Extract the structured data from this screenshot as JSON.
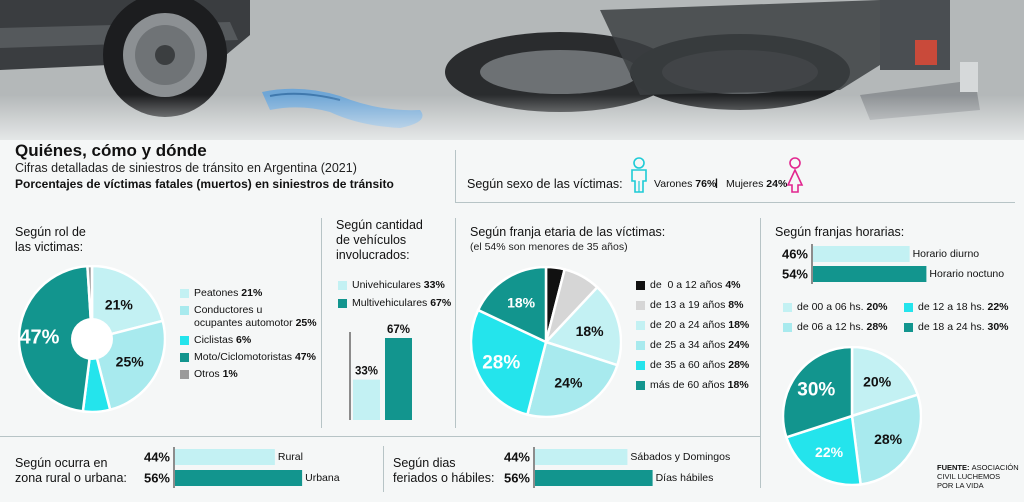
{
  "header": {
    "title": "Quiénes, cómo y dónde",
    "subtitle": "Cifras detalladas de siniestros de tránsito en Argentina (2021)",
    "subtitle2": "Porcentajes de víctimas fatales (muertos) en siniestros de tránsito"
  },
  "colors": {
    "dark": "#12958e",
    "light": "#c3f1f3",
    "mid": "#6fdde2",
    "bright": "#24e4ec",
    "black": "#111111",
    "grey": "#c9c9c9",
    "pink": "#e2268f"
  },
  "sexo": {
    "title": "Según sexo de las víctimas:",
    "varones_label": "Varones",
    "varones_value": "76%",
    "separator": "|",
    "mujeres_label": "Mujeres",
    "mujeres_value": "24%",
    "varones_icon": "male-person-icon",
    "mujeres_icon": "female-person-icon"
  },
  "rol": {
    "title1": "Según rol de",
    "title2": "las victimas:",
    "legend": [
      {
        "label": "Peatones",
        "value": "21%"
      },
      {
        "label": "Conductores u",
        "label2": "ocupantes automotor",
        "value": "25%"
      },
      {
        "label": "Ciclistas",
        "value": "6%"
      },
      {
        "label": "Moto/Ciclomotoristas",
        "value": "47%"
      },
      {
        "label": "Otros",
        "value": "1%"
      }
    ]
  },
  "vehiculos": {
    "title1": "Según cantidad",
    "title2": "de vehículos",
    "title3": "involucrados:",
    "legend": [
      {
        "label": "Univehiculares",
        "value": "33%"
      },
      {
        "label": "Multivehiculares",
        "value": "67%"
      }
    ]
  },
  "edad": {
    "title": "Según franja etaria de las víctimas:",
    "note": "(el 54% son menores de 35 años)",
    "legend": [
      {
        "label": "de  0 a 12 años",
        "value": "4%"
      },
      {
        "label": "de 13 a 19 años",
        "value": "8%"
      },
      {
        "label": "de 20 a 24 años",
        "value": "18%"
      },
      {
        "label": "de 25 a 34 años",
        "value": "24%"
      },
      {
        "label": "de 35 a 60 años",
        "value": "28%"
      },
      {
        "label": "más de 60 años",
        "value": "18%"
      }
    ]
  },
  "horarias": {
    "title": "Según franjas horarias:",
    "legend": [
      {
        "label": "de 00 a 06 hs.",
        "value": "20%"
      },
      {
        "label": "de 12 a 18 hs.",
        "value": "22%"
      },
      {
        "label": "de 06 a 12 hs.",
        "value": "28%"
      },
      {
        "label": "de 18 a 24 hs.",
        "value": "30%"
      }
    ]
  },
  "zona": {
    "title1": "Según ocurra en",
    "title2": "zona rural o urbana:"
  },
  "dias": {
    "title1": "Según dias",
    "title2": "feriados o hábiles:"
  },
  "fuente": {
    "label": "FUENTE:",
    "text1": "ASOCIACIÓN",
    "text2": "CIVIL LUCHEMOS",
    "text3": "POR LA VIDA"
  },
  "chart_data": [
    {
      "type": "pie",
      "name": "rol",
      "labels": [
        "Peatones",
        "Conductores u ocupantes automotor",
        "Ciclistas",
        "Moto/Ciclomotoristas",
        "Otros"
      ],
      "values": [
        21,
        25,
        6,
        47,
        1
      ],
      "display": [
        "21%",
        "25%",
        "",
        "47%",
        ""
      ]
    },
    {
      "type": "bar",
      "name": "vehiculos",
      "categories": [
        "Univehiculares",
        "Multivehiculares"
      ],
      "values": [
        33,
        67
      ],
      "display": [
        "33%",
        "67%"
      ],
      "ylim": [
        0,
        67
      ]
    },
    {
      "type": "pie",
      "name": "edad",
      "labels": [
        "de 0 a 12 años",
        "de 13 a 19 años",
        "de 20 a 24 años",
        "de 25 a 34 años",
        "de 35 a 60 años",
        "más de 60 años"
      ],
      "values": [
        4,
        8,
        18,
        24,
        28,
        18
      ],
      "display": [
        "",
        "",
        "18%",
        "24%",
        "28%",
        "18%"
      ]
    },
    {
      "type": "bar",
      "name": "horario",
      "orientation": "horizontal",
      "categories": [
        "Horario diurno",
        "Horario noctuno"
      ],
      "values": [
        46,
        54
      ],
      "display": [
        "46%",
        "54%"
      ]
    },
    {
      "type": "pie",
      "name": "franjas",
      "labels": [
        "de 00 a 06 hs.",
        "de 06 a 12 hs.",
        "de 12 a 18 hs.",
        "de 18 a 24 hs."
      ],
      "values": [
        20,
        28,
        22,
        30
      ],
      "display": [
        "20%",
        "28%",
        "22%",
        "30%"
      ]
    },
    {
      "type": "bar",
      "name": "zona",
      "orientation": "horizontal",
      "categories": [
        "Rural",
        "Urbana"
      ],
      "values": [
        44,
        56
      ],
      "display": [
        "44%",
        "56%"
      ]
    },
    {
      "type": "bar",
      "name": "dias",
      "orientation": "horizontal",
      "categories": [
        "Sábados y Domingos",
        "Días hábiles"
      ],
      "values": [
        44,
        56
      ],
      "display": [
        "44%",
        "56%"
      ]
    }
  ]
}
